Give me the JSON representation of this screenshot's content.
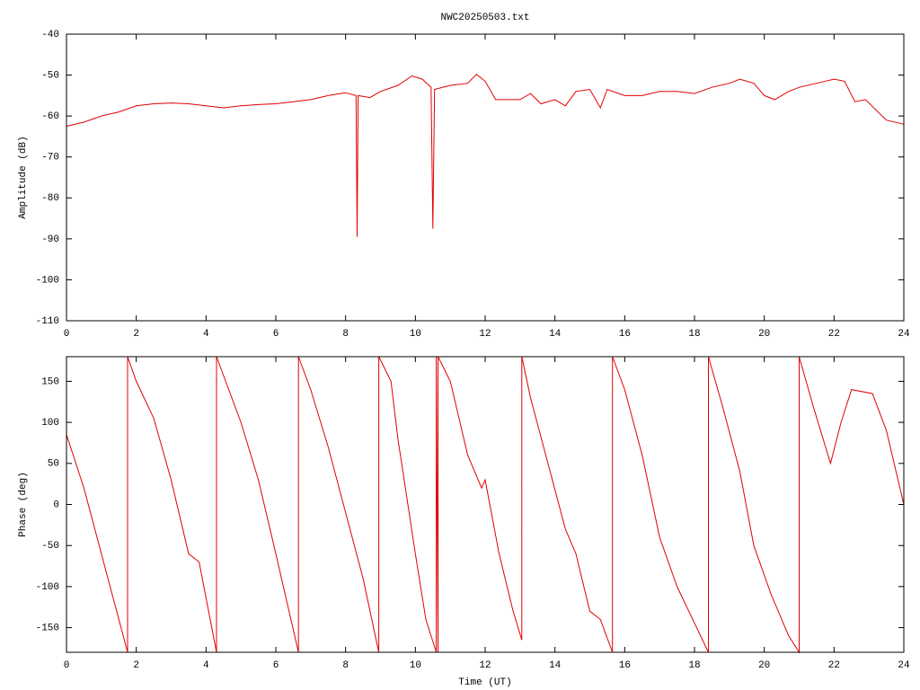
{
  "chart_data": [
    {
      "type": "line",
      "title": "NWC20250503.txt",
      "y_label": "Amplitude (dB)",
      "x": [
        0,
        0.5,
        1,
        1.5,
        2,
        2.5,
        3,
        3.5,
        4,
        4.5,
        5,
        5.5,
        6,
        6.5,
        7,
        7.5,
        8,
        8.3,
        8.33,
        8.36,
        8.7,
        9,
        9.5,
        9.9,
        10.2,
        10.45,
        10.5,
        10.55,
        11,
        11.5,
        11.75,
        12,
        12.3,
        12.6,
        13,
        13.3,
        13.6,
        14,
        14.3,
        14.6,
        15,
        15.3,
        15.5,
        16,
        16.5,
        17,
        17.5,
        18,
        18.5,
        19,
        19.3,
        19.7,
        20,
        20.3,
        20.7,
        21,
        21.5,
        22,
        22.3,
        22.6,
        22.9,
        23.2,
        23.5,
        24
      ],
      "series": [
        {
          "color": "#e00000",
          "values": [
            -62.5,
            -61.5,
            -60,
            -59,
            -57.5,
            -57,
            -56.8,
            -57,
            -57.5,
            -58,
            -57.5,
            -57.2,
            -57,
            -56.5,
            -56,
            -55,
            -54.3,
            -55,
            -89.5,
            -55,
            -55.5,
            -54,
            -52.5,
            -50.2,
            -51,
            -53,
            -87.5,
            -53.5,
            -52.5,
            -52,
            -49.8,
            -51.5,
            -56,
            -56,
            -56,
            -54.5,
            -57,
            -56,
            -57.5,
            -54,
            -53.5,
            -58,
            -53.5,
            -55,
            -55,
            -54,
            -54,
            -54.5,
            -53,
            -52,
            -51,
            -52,
            -55,
            -56,
            -54,
            -53,
            -52,
            -51,
            -51.5,
            -56.5,
            -56,
            -58.5,
            -61,
            -62
          ]
        }
      ],
      "xlim": [
        0,
        24
      ],
      "xticks": [
        0,
        2,
        4,
        6,
        8,
        10,
        12,
        14,
        16,
        18,
        20,
        22,
        24
      ],
      "ylim": [
        -110,
        -40
      ],
      "yticks": [
        -110,
        -100,
        -90,
        -80,
        -70,
        -60,
        -50,
        -40
      ]
    },
    {
      "type": "line",
      "x_label": "Time (UT)",
      "y_label": "Phase (deg)",
      "x": [
        0,
        0.5,
        1,
        1.5,
        1.75,
        1.75,
        2,
        2.5,
        3,
        3.5,
        3.8,
        4.3,
        4.3,
        5,
        5.5,
        6,
        6.65,
        6.65,
        7,
        7.5,
        8,
        8.5,
        8.95,
        8.95,
        9.3,
        9.5,
        10,
        10.3,
        10.6,
        10.6,
        10.65,
        10.65,
        11,
        11.5,
        11.9,
        12,
        12.4,
        12.8,
        13.05,
        13.05,
        13.3,
        13.8,
        14.3,
        14.6,
        15,
        15.3,
        15.65,
        15.65,
        16,
        16.5,
        17,
        17.5,
        18.4,
        18.4,
        18.8,
        19.3,
        19.7,
        20.2,
        20.7,
        21,
        21,
        21.4,
        21.9,
        22.2,
        22.5,
        23.1,
        23.5,
        24
      ],
      "series": [
        {
          "color": "#e00000",
          "values": [
            85,
            20,
            -60,
            -140,
            -180,
            180,
            150,
            105,
            30,
            -60,
            -70,
            -180,
            180,
            100,
            30,
            -60,
            -180,
            180,
            140,
            70,
            -10,
            -90,
            -180,
            180,
            150,
            80,
            -60,
            -140,
            -180,
            180,
            -180,
            180,
            150,
            60,
            20,
            30,
            -60,
            -130,
            -165,
            180,
            130,
            50,
            -30,
            -60,
            -130,
            -140,
            -180,
            180,
            140,
            60,
            -40,
            -100,
            -180,
            180,
            120,
            40,
            -50,
            -110,
            -160,
            -180,
            180,
            120,
            50,
            100,
            140,
            135,
            90,
            0
          ]
        }
      ],
      "xlim": [
        0,
        24
      ],
      "xticks": [
        0,
        2,
        4,
        6,
        8,
        10,
        12,
        14,
        16,
        18,
        20,
        22,
        24
      ],
      "ylim": [
        -180,
        180
      ],
      "yticks": [
        -150,
        -100,
        -50,
        0,
        50,
        100,
        150
      ]
    }
  ]
}
